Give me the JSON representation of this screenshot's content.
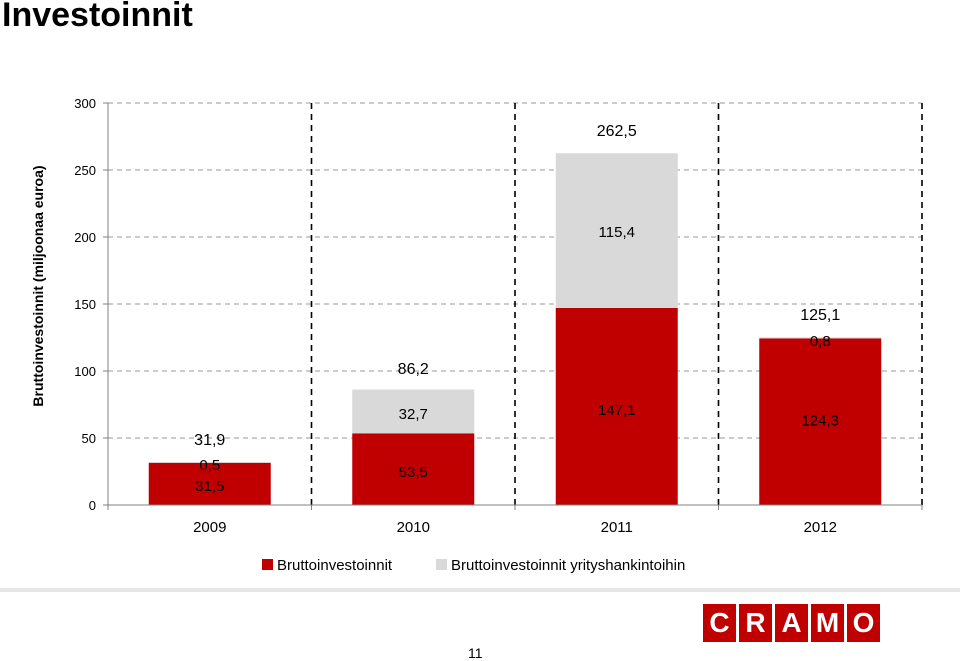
{
  "title": "Investoinnit",
  "page_number": "11",
  "logo_letters": [
    "C",
    "R",
    "A",
    "M",
    "O"
  ],
  "colors": {
    "gross": "#c00000",
    "acquisitions": "#d9d9d9",
    "logo": "#c00000"
  },
  "chart_data": {
    "type": "bar",
    "stacked": true,
    "categories": [
      "2009",
      "2010",
      "2011",
      "2012"
    ],
    "series": [
      {
        "name": "Bruttoinvestoinnit",
        "values": [
          31.5,
          53.5,
          147.1,
          124.3
        ],
        "labels": [
          "31,5",
          "53,5",
          "147,1",
          "124,3"
        ]
      },
      {
        "name": "Bruttoinvestoinnit yrityshankintoihin",
        "values": [
          0.5,
          32.7,
          115.4,
          0.8
        ],
        "labels": [
          "0,5",
          "32,7",
          "115,4",
          "0,8"
        ]
      }
    ],
    "totals": [
      "31,9",
      "86,2",
      "262,5",
      "125,1"
    ],
    "ylabel": "Bruttoinvestoinnit (miljoonaa euroa)",
    "xlabel": "",
    "ylim": [
      0,
      300
    ],
    "yticks": [
      "0",
      "50",
      "100",
      "150",
      "200",
      "250",
      "300"
    ],
    "grid": true,
    "legend": "bottom"
  }
}
